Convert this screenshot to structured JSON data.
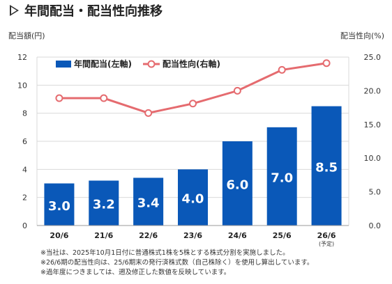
{
  "title": "年間配当・配当性向推移",
  "chart_data": {
    "type": "bar",
    "categories": [
      "20/6",
      "21/6",
      "22/6",
      "23/6",
      "24/6",
      "25/6",
      "26/6"
    ],
    "category_notes": [
      "",
      "",
      "",
      "",
      "",
      "",
      "(予定)"
    ],
    "series": [
      {
        "name": "年間配当(左軸)",
        "type": "bar",
        "axis": "left",
        "values": [
          3.0,
          3.2,
          3.4,
          4.0,
          6.0,
          7.0,
          8.5
        ],
        "labels": [
          "3.0",
          "3.2",
          "3.4",
          "4.0",
          "6.0",
          "7.0",
          "8.5"
        ]
      },
      {
        "name": "配当性向(右軸)",
        "type": "line",
        "axis": "right",
        "values": [
          18.9,
          18.9,
          16.7,
          18.1,
          20.0,
          23.1,
          24.1
        ]
      }
    ],
    "y_left": {
      "label": "配当額(円)",
      "range": [
        0,
        12
      ],
      "ticks": [
        "0",
        "2",
        "4",
        "6",
        "8",
        "10",
        "12"
      ]
    },
    "y_right": {
      "label": "配当性向(%)",
      "range": [
        0,
        25
      ],
      "ticks": [
        "0.0",
        "5.0",
        "10.0",
        "15.0",
        "20.0",
        "25.0"
      ]
    },
    "grid": true,
    "legend_position": "top-left",
    "colors": {
      "bar": "#0a58b8",
      "line": "#e56b6f",
      "grid": "#d9d9d9",
      "bar_label": "#ffffff"
    }
  },
  "notes": [
    "※当社は、2025年10月1日付に普通株式1株を5株とする株式分割を実施しました。",
    "※26/6期の配当性向は、25/6期末の発行済株式数（自己株除く）を使用し算出しています。",
    "※過年度につきましては、遡及修正した数値を反映しています。"
  ]
}
